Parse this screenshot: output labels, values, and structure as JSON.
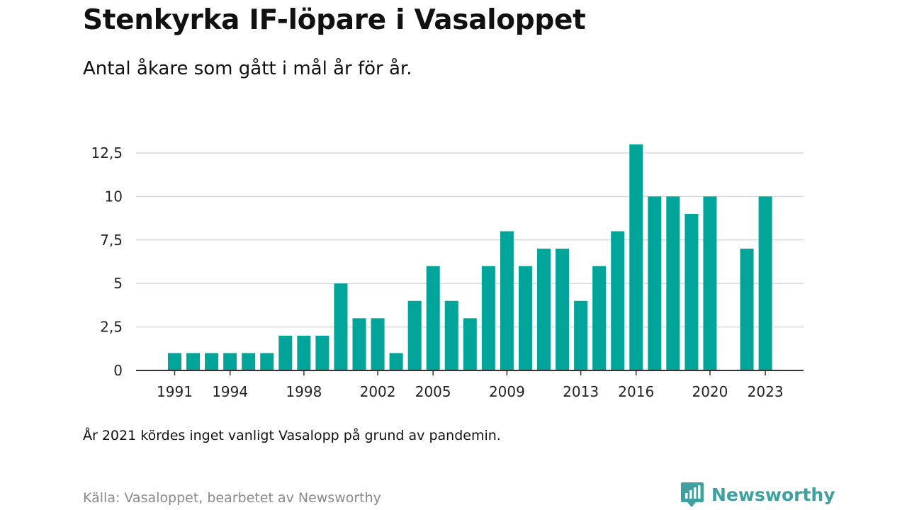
{
  "title": "Stenkyrka IF-löpare i Vasaloppet",
  "subtitle": "Antal åkare som gått i mål år för år.",
  "note": "År 2021 kördes inget vanligt Vasalopp på grund av pandemin.",
  "source": "Källa: Vasaloppet, bearbetet av Newsworthy",
  "brand": {
    "name": "Newsworthy",
    "color": "#3fa0a0",
    "icon": "newsworthy-logo-icon"
  },
  "chart_data": {
    "type": "bar",
    "title": "",
    "xlabel": "",
    "ylabel": "",
    "color": "#00a499",
    "grid": true,
    "ylim": [
      0,
      13
    ],
    "yticks": [
      0,
      2.5,
      5,
      7.5,
      10,
      12.5
    ],
    "ytick_labels": [
      "0",
      "2,5",
      "5",
      "7,5",
      "10",
      "12,5"
    ],
    "xticks": [
      1991,
      1994,
      1998,
      2002,
      2005,
      2009,
      2013,
      2016,
      2020,
      2023
    ],
    "x": [
      1991,
      1992,
      1993,
      1994,
      1995,
      1996,
      1997,
      1998,
      1999,
      2000,
      2001,
      2002,
      2003,
      2004,
      2005,
      2006,
      2007,
      2008,
      2009,
      2010,
      2011,
      2012,
      2013,
      2014,
      2015,
      2016,
      2017,
      2018,
      2019,
      2020,
      2022,
      2023
    ],
    "values": [
      1,
      1,
      1,
      1,
      1,
      1,
      2,
      2,
      2,
      5,
      3,
      3,
      1,
      4,
      6,
      4,
      3,
      6,
      8,
      6,
      7,
      7,
      4,
      6,
      8,
      13,
      10,
      10,
      9,
      10,
      7,
      10
    ]
  }
}
